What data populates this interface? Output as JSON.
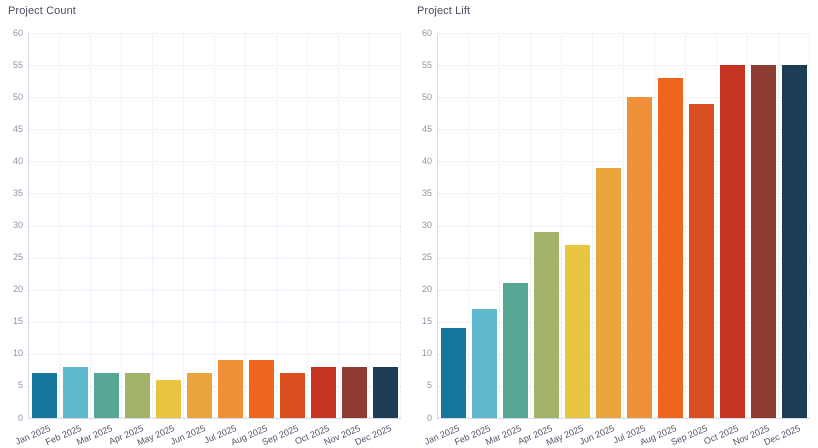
{
  "page": {
    "background": "#ffffff"
  },
  "chart_data": [
    {
      "type": "bar",
      "title": "Project Count",
      "categories": [
        "Jan 2025",
        "Feb 2025",
        "Mar 2025",
        "Apr 2025",
        "May 2025",
        "Jun 2025",
        "Jul 2025",
        "Aug 2025",
        "Sep 2025",
        "Oct 2025",
        "Nov 2025",
        "Dec 2025"
      ],
      "values": [
        7,
        8,
        7,
        7,
        6,
        7,
        9,
        9,
        7,
        8,
        8,
        8
      ],
      "colors": [
        "#14779b",
        "#5fb9cc",
        "#57a795",
        "#a2b46a",
        "#e9c440",
        "#eaa43d",
        "#f0913a",
        "#f1661f",
        "#da4f20",
        "#c43421",
        "#8e3c31",
        "#1c3e55"
      ],
      "ylim": [
        0,
        60
      ],
      "yticks": [
        0,
        5,
        10,
        15,
        20,
        25,
        30,
        35,
        40,
        45,
        50,
        55,
        60
      ],
      "grid": true,
      "legend": "none",
      "xlabel": "",
      "ylabel": ""
    },
    {
      "type": "bar",
      "title": "Project Lift",
      "categories": [
        "Jan 2025",
        "Feb 2025",
        "Mar 2025",
        "Apr 2025",
        "May 2025",
        "Jun 2025",
        "Jul 2025",
        "Aug 2025",
        "Sep 2025",
        "Oct 2025",
        "Nov 2025",
        "Dec 2025"
      ],
      "values": [
        14,
        17,
        21,
        29,
        27,
        39,
        50,
        53,
        49,
        55,
        55,
        55
      ],
      "colors": [
        "#14779b",
        "#5fb9cc",
        "#57a795",
        "#a2b46a",
        "#e9c440",
        "#eaa43d",
        "#f0913a",
        "#f1661f",
        "#da4f20",
        "#c43421",
        "#8e3c31",
        "#1c3e55"
      ],
      "ylim": [
        0,
        60
      ],
      "yticks": [
        0,
        5,
        10,
        15,
        20,
        25,
        30,
        35,
        40,
        45,
        50,
        55,
        60
      ],
      "grid": true,
      "legend": "none",
      "xlabel": "",
      "ylabel": ""
    }
  ]
}
